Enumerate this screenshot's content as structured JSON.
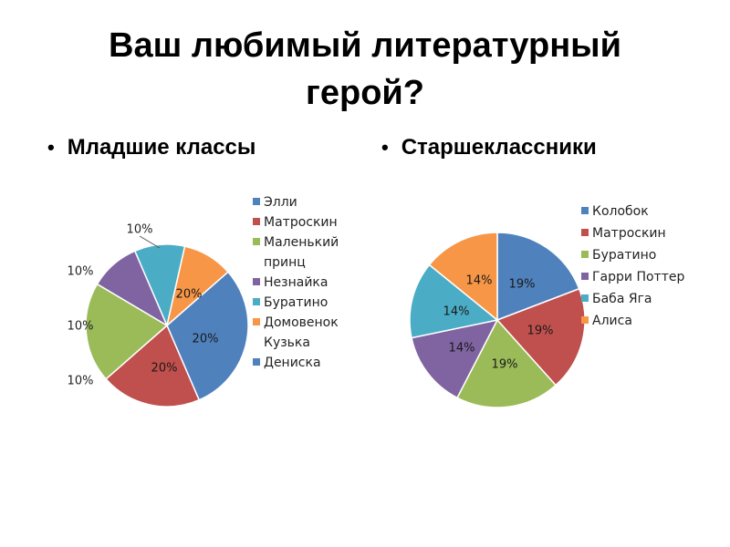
{
  "title_line1": "Ваш любимый литературный",
  "title_line2": "герой?",
  "bullets": {
    "left": "Младшие классы",
    "right": "Старшеклассники"
  },
  "chart_data": [
    {
      "type": "pie",
      "title": "Младшие классы",
      "legend_position": "right",
      "slices": [
        {
          "label": "Элли",
          "value": 30,
          "display": "",
          "color": "#4F81BD"
        },
        {
          "label": "Матроскин",
          "value": 20,
          "display": "20%",
          "color": "#C0504D"
        },
        {
          "label": "Маленький принц",
          "value": 20,
          "display": "20%",
          "color": "#9BBB59"
        },
        {
          "label": "Незнайка",
          "value": 10,
          "display": "10%",
          "color": "#8064A2"
        },
        {
          "label": "Буратино",
          "value": 10,
          "display": "10%",
          "color": "#4BACC6"
        },
        {
          "label": "Домовенок Кузька",
          "value": 10,
          "display": "10%",
          "color": "#F79646"
        },
        {
          "label": "Дениска",
          "value": 0,
          "display": "",
          "color": "#4F81BD"
        }
      ],
      "extra_labels": [
        "20%"
      ]
    },
    {
      "type": "pie",
      "title": "Старшеклассники",
      "legend_position": "right",
      "slices": [
        {
          "label": "Колобок",
          "value": 19,
          "display": "19%",
          "color": "#4F81BD"
        },
        {
          "label": "Матроскин",
          "value": 19,
          "display": "19%",
          "color": "#C0504D"
        },
        {
          "label": "Буратино",
          "value": 19,
          "display": "19%",
          "color": "#9BBB59"
        },
        {
          "label": "Гарри Поттер",
          "value": 14,
          "display": "14%",
          "color": "#8064A2"
        },
        {
          "label": "Баба Яга",
          "value": 14,
          "display": "14%",
          "color": "#4BACC6"
        },
        {
          "label": "Алиса",
          "value": 14,
          "display": "14%",
          "color": "#F79646"
        }
      ]
    }
  ]
}
